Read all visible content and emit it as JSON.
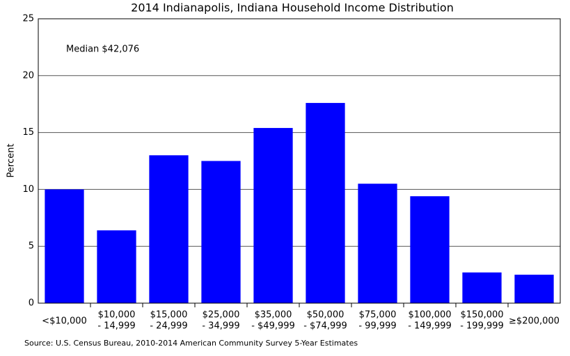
{
  "chart_data": {
    "type": "bar",
    "title": "2014 Indianapolis, Indiana Household Income Distribution",
    "y_label": "Percent",
    "annotation": "Median $42,076",
    "source": "Source: U.S. Census Bureau, 2010-2014 American Community Survey 5-Year Estimates",
    "categories": [
      [
        "<$10,000"
      ],
      [
        "$10,000",
        "- 14,999"
      ],
      [
        "$15,000",
        "- 24,999"
      ],
      [
        "$25,000",
        "- 34,999"
      ],
      [
        "$35,000",
        "- $49,999"
      ],
      [
        "$50,000",
        "- $74,999"
      ],
      [
        "$75,000",
        "- 99,999"
      ],
      [
        "$100,000",
        "- 149,999"
      ],
      [
        "$150,000",
        "- 199,999"
      ],
      [
        "≥$200,000"
      ]
    ],
    "values": [
      10,
      6.4,
      13.0,
      12.5,
      15.4,
      17.6,
      10.5,
      9.4,
      2.7,
      2.5
    ],
    "color": "#0000ff",
    "ylim": [
      0,
      25
    ],
    "yticks": [
      0,
      5,
      10,
      15,
      20,
      25
    ],
    "grid": true
  }
}
